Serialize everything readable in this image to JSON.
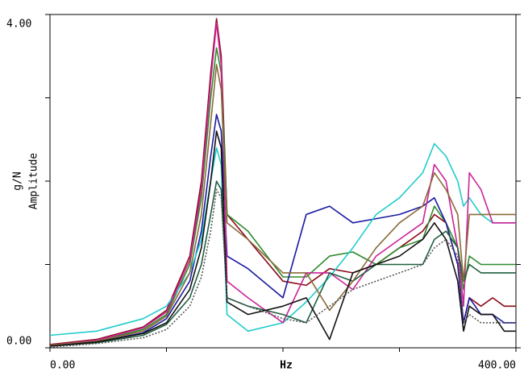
{
  "chart_data": {
    "type": "line",
    "x_label": "Hz",
    "y_label_unit": "g/N",
    "y_label": "Amplitude",
    "xlim": [
      0,
      400
    ],
    "ylim": [
      0,
      4
    ],
    "xticks": [
      {
        "value": 0,
        "label": "0.00"
      },
      {
        "value": 400,
        "label": "400.00"
      }
    ],
    "yticks": [
      {
        "value": 0,
        "label": "0.00"
      },
      {
        "value": 4,
        "label": "4.00"
      }
    ],
    "minor_xticks": [
      100,
      200,
      300
    ],
    "minor_yticks": [
      1,
      2,
      3
    ],
    "x": [
      0,
      40,
      80,
      100,
      120,
      130,
      138,
      143,
      147,
      152,
      170,
      200,
      220,
      240,
      260,
      280,
      300,
      320,
      330,
      340,
      350,
      355,
      360,
      370,
      380,
      390,
      400
    ],
    "series": [
      {
        "color": "#8b0a1a",
        "values": [
          0.04,
          0.1,
          0.25,
          0.45,
          1.1,
          2.0,
          3.3,
          3.95,
          3.5,
          1.6,
          1.3,
          0.8,
          0.75,
          0.95,
          0.9,
          1.0,
          1.2,
          1.4,
          1.6,
          1.5,
          1.0,
          0.3,
          0.6,
          0.5,
          0.6,
          0.5,
          0.5
        ]
      },
      {
        "color": "#2e8b2e",
        "values": [
          0.03,
          0.08,
          0.22,
          0.4,
          1.0,
          1.8,
          3.0,
          3.6,
          3.3,
          1.6,
          1.4,
          0.85,
          0.85,
          1.1,
          1.15,
          1.0,
          1.2,
          1.3,
          1.7,
          1.5,
          1.2,
          0.7,
          1.1,
          1.0,
          1.0,
          1.0,
          1.0
        ]
      },
      {
        "color": "#1a1aa0",
        "values": [
          0.03,
          0.07,
          0.18,
          0.35,
          0.8,
          1.4,
          2.3,
          2.8,
          2.6,
          1.1,
          0.95,
          0.6,
          1.6,
          1.7,
          1.5,
          1.55,
          1.6,
          1.7,
          1.8,
          1.5,
          1.0,
          0.3,
          0.6,
          0.4,
          0.4,
          0.3,
          0.3
        ]
      },
      {
        "color": "#22cccc",
        "values": [
          0.15,
          0.2,
          0.35,
          0.5,
          0.9,
          1.3,
          2.0,
          2.4,
          2.2,
          0.4,
          0.2,
          0.3,
          0.55,
          0.85,
          1.2,
          1.6,
          1.8,
          2.1,
          2.45,
          2.3,
          2.0,
          1.7,
          1.8,
          1.6,
          1.5,
          1.5,
          1.5
        ]
      },
      {
        "color": "#cc2299",
        "values": [
          0.03,
          0.09,
          0.24,
          0.43,
          1.05,
          1.9,
          3.2,
          3.9,
          3.4,
          0.8,
          0.6,
          0.3,
          0.9,
          0.9,
          0.7,
          1.1,
          1.3,
          1.5,
          2.2,
          2.0,
          1.2,
          0.5,
          2.1,
          1.9,
          1.5,
          1.5,
          1.5
        ]
      },
      {
        "color": "#1f5f3f",
        "values": [
          0.02,
          0.06,
          0.15,
          0.28,
          0.6,
          1.0,
          1.6,
          2.0,
          1.9,
          0.6,
          0.5,
          0.4,
          0.3,
          0.9,
          0.8,
          1.0,
          1.0,
          1.0,
          1.3,
          1.4,
          1.2,
          0.8,
          1.0,
          0.9,
          0.9,
          0.9,
          0.9
        ]
      },
      {
        "color": "#8a6a3a",
        "values": [
          0.03,
          0.08,
          0.2,
          0.38,
          0.9,
          1.6,
          2.7,
          3.4,
          3.1,
          1.5,
          1.3,
          0.9,
          0.9,
          0.45,
          0.8,
          1.2,
          1.5,
          1.7,
          2.1,
          1.9,
          1.6,
          0.8,
          1.6,
          1.6,
          1.6,
          1.6,
          1.6
        ]
      },
      {
        "color": "#111111",
        "values": [
          0.02,
          0.07,
          0.17,
          0.3,
          0.7,
          1.2,
          2.0,
          2.6,
          2.4,
          0.55,
          0.4,
          0.5,
          0.6,
          0.1,
          0.9,
          1.0,
          1.1,
          1.3,
          1.5,
          1.3,
          0.8,
          0.2,
          0.5,
          0.4,
          0.4,
          0.2,
          0.2
        ]
      },
      {
        "color": "#555555",
        "dashed": true,
        "values": [
          0.01,
          0.05,
          0.12,
          0.22,
          0.5,
          0.85,
          1.4,
          1.9,
          1.8,
          0.6,
          0.5,
          0.35,
          0.3,
          0.5,
          0.7,
          0.8,
          0.9,
          1.0,
          1.2,
          1.3,
          1.1,
          0.3,
          0.4,
          0.3,
          0.3,
          0.3,
          0.3
        ]
      }
    ]
  }
}
